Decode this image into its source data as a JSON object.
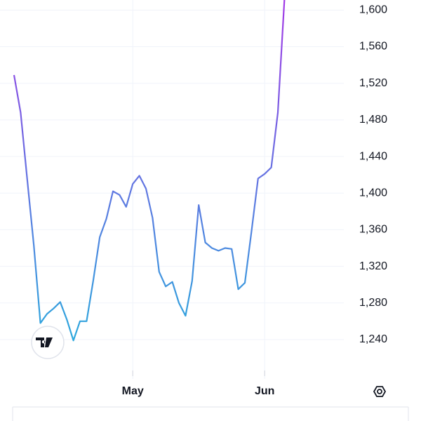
{
  "chart_data": {
    "type": "line",
    "categories": [
      null,
      null,
      null,
      null,
      null,
      null,
      null,
      null,
      null,
      null,
      null,
      null,
      null,
      null,
      null,
      null,
      null,
      null,
      "May",
      null,
      null,
      null,
      null,
      null,
      null,
      null,
      null,
      null,
      null,
      null,
      null,
      null,
      null,
      null,
      null,
      null,
      null,
      null,
      "Jun",
      null,
      null,
      null
    ],
    "series": [
      {
        "values": [
          1529,
          1488,
          1415,
          1343,
          1258,
          1268,
          1274,
          1281,
          1262,
          1239,
          1260,
          1260,
          1304,
          1352,
          1372,
          1402,
          1398,
          1385,
          1410,
          1419,
          1405,
          1373,
          1314,
          1298,
          1303,
          1280,
          1266,
          1304,
          1387,
          1346,
          1340,
          1337,
          1340,
          1339,
          1295,
          1302,
          1358,
          1416,
          1421,
          1428,
          1488,
          1612
        ]
      }
    ],
    "line_gradient": [
      "#2ba9dd",
      "#a23ae6"
    ],
    "ylim": [
      1197,
      1611
    ],
    "yticks": [
      {
        "value": 1240,
        "label": "1,240"
      },
      {
        "value": 1280,
        "label": "1,280"
      },
      {
        "value": 1320,
        "label": "1,320"
      },
      {
        "value": 1360,
        "label": "1,360"
      },
      {
        "value": 1400,
        "label": "1,400"
      },
      {
        "value": 1440,
        "label": "1,440"
      },
      {
        "value": 1480,
        "label": "1,480"
      },
      {
        "value": 1520,
        "label": "1,520"
      },
      {
        "value": 1560,
        "label": "1,560"
      },
      {
        "value": 1600,
        "label": "1,600"
      }
    ],
    "grid": true
  }
}
